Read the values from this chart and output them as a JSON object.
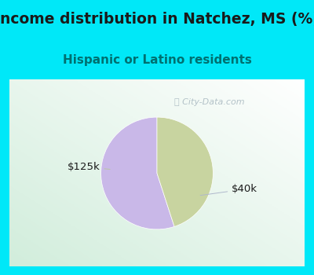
{
  "title": "Income distribution in Natchez, MS (%)",
  "subtitle": "Hispanic or Latino residents",
  "slices": [
    {
      "label": "$40k",
      "value": 55,
      "color": "#c9b8e8"
    },
    {
      "label": "$125k",
      "value": 45,
      "color": "#c8d4a0"
    }
  ],
  "title_fontsize": 13.5,
  "subtitle_fontsize": 11,
  "title_color": "#1a1a1a",
  "subtitle_color": "#007070",
  "label_color": "#1a1a1a",
  "label_fontsize": 9.5,
  "bg_cyan_color": "#00e8f8",
  "watermark_text": "ⓘ City-Data.com",
  "watermark_color": "#a8b8c0",
  "start_angle": 90
}
